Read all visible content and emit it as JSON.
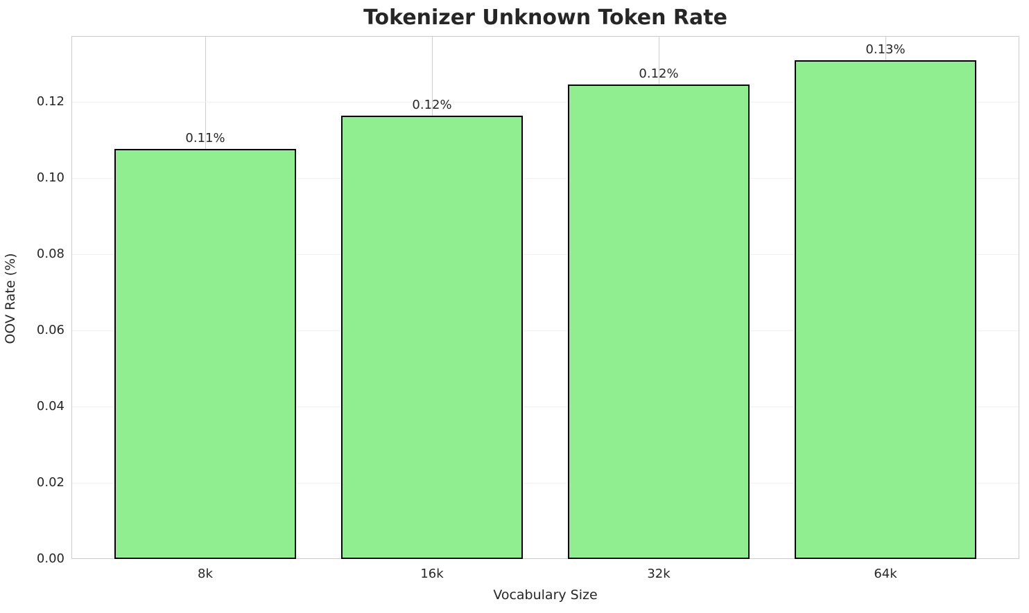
{
  "figure": {
    "background_color": "#ffffff"
  },
  "chart_data": {
    "type": "bar",
    "title": "Tokenizer Unknown Token Rate",
    "xlabel": "Vocabulary Size",
    "ylabel": "OOV Rate (%)",
    "categories": [
      "8k",
      "16k",
      "32k",
      "64k"
    ],
    "values": [
      0.1076,
      0.1164,
      0.1245,
      0.1309
    ],
    "bar_labels": [
      "0.11%",
      "0.12%",
      "0.12%",
      "0.13%"
    ],
    "ylim": [
      0,
      0.1373
    ],
    "yticks": [
      0.0,
      0.02,
      0.04,
      0.06,
      0.08,
      0.1,
      0.12
    ],
    "ytick_labels": [
      "0.00",
      "0.02",
      "0.04",
      "0.06",
      "0.08",
      "0.10",
      "0.12"
    ],
    "grid": true,
    "legend": "none",
    "colors": {
      "bar_fill": "#90EE90",
      "bar_edge": "#000000",
      "horizontal_grid": "#f0f0f0",
      "vertical_grid": "#cdcdcd",
      "spine": "#cccccc",
      "text": "#262626"
    }
  }
}
